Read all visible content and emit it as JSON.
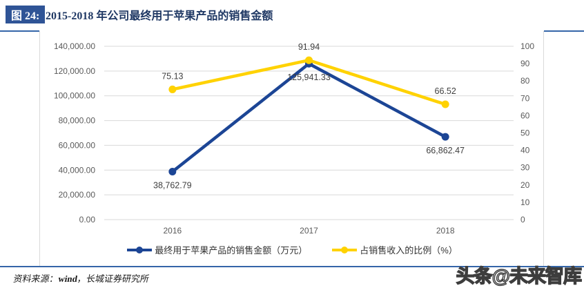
{
  "figure": {
    "label": "图 24:",
    "title": "2015-2018 年公司最终用于苹果产品的销售金额"
  },
  "source_note": {
    "prefix": "资料来源：",
    "bold": "wind",
    "suffix": "，长城证券研究所"
  },
  "watermark": "头条@未来智库",
  "colors": {
    "chip_navy": "#2F5496",
    "title_navy": "#1F3864",
    "rule_blue": "#3465A8",
    "series_blue": "#1C4595",
    "series_yellow": "#FFD200",
    "grid": "#D9D9D9",
    "axis_text": "#595959",
    "label_text": "#3F3F3F"
  },
  "chart_data": {
    "type": "line",
    "title": "2015-2018 年公司最终用于苹果产品的销售金额",
    "categories": [
      "2016",
      "2017",
      "2018"
    ],
    "series": [
      {
        "name": "最终用于苹果产品的销售金额（万元）",
        "axis": "left",
        "color_key": "series_blue",
        "values": [
          38762.79,
          125941.33,
          66862.47
        ],
        "labels": [
          "38,762.79",
          "125,941.33",
          "66,862.47"
        ],
        "label_side": "below"
      },
      {
        "name": "占销售收入的比例（%）",
        "axis": "right",
        "color_key": "series_yellow",
        "values": [
          75.13,
          91.94,
          66.52
        ],
        "labels": [
          "75.13",
          "91.94",
          "66.52"
        ],
        "label_side": "above"
      }
    ],
    "left_axis": {
      "min": 0,
      "max": 140000,
      "step": 20000,
      "tick_labels": [
        "0.00",
        "20,000.00",
        "40,000.00",
        "60,000.00",
        "80,000.00",
        "100,000.00",
        "120,000.00",
        "140,000.00"
      ]
    },
    "right_axis": {
      "min": 0,
      "max": 100,
      "step": 10,
      "tick_labels": [
        "0",
        "10",
        "20",
        "30",
        "40",
        "50",
        "60",
        "70",
        "80",
        "90",
        "100"
      ]
    },
    "grid": true,
    "legend_position": "bottom"
  }
}
